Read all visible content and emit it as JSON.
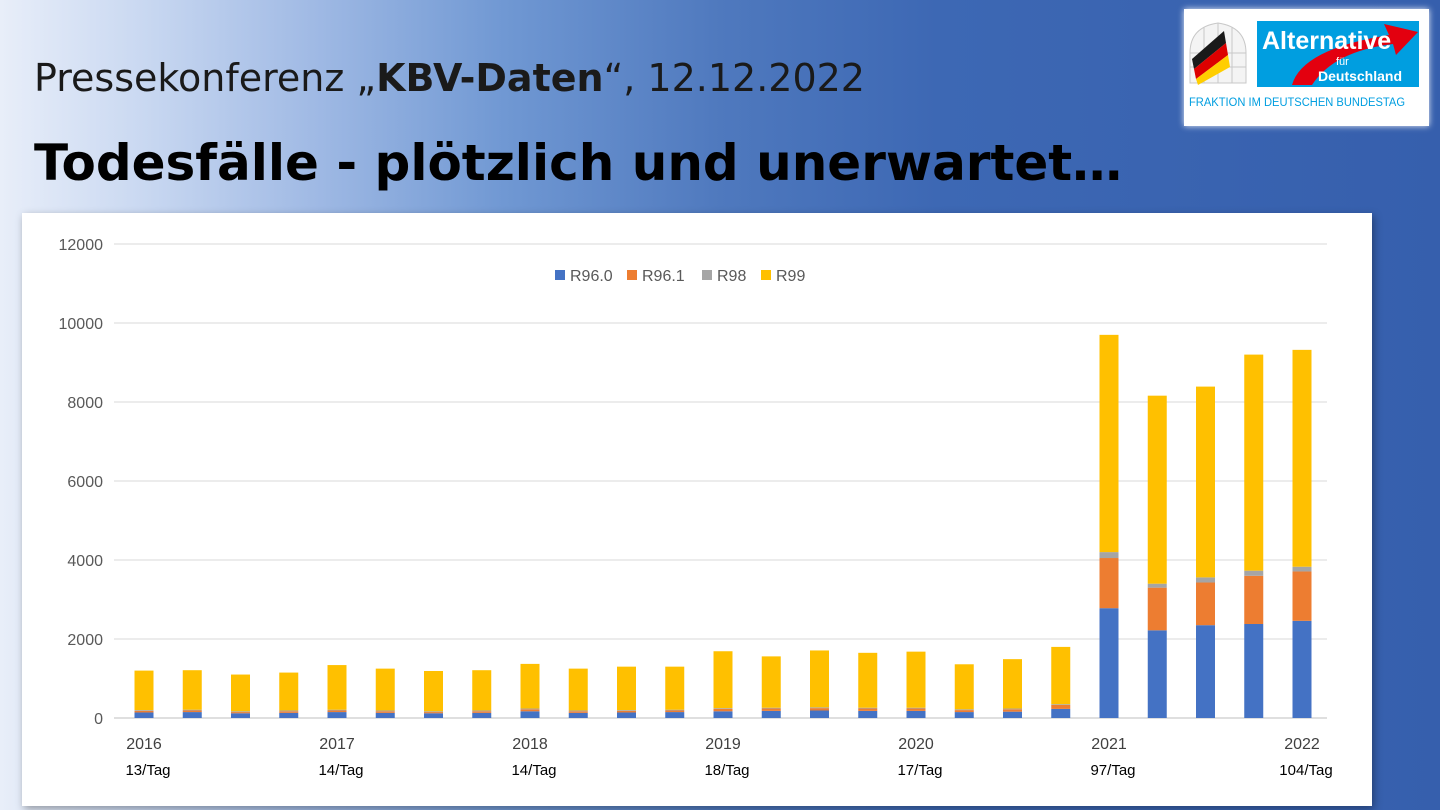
{
  "header": {
    "title_prefix": "Pressekonferenz „",
    "title_bold": "KBV-Daten",
    "title_suffix": "“, 12.12.2022",
    "headline": "Todesfälle - plötzlich und unerwartet…"
  },
  "logo": {
    "brand_word": "Alternative",
    "fuer": "für",
    "country": "Deutschland",
    "subtitle": "FRAKTION IM DEUTSCHEN BUNDESTAG",
    "brand_color": "#009ee0",
    "arrow_color": "#e3000f"
  },
  "chart_data": {
    "type": "bar",
    "stacked": true,
    "grid": true,
    "legend_position": "top-center",
    "ylim": [
      0,
      12000
    ],
    "y_ticks": [
      "0",
      "2000",
      "4000",
      "6000",
      "8000",
      "10000",
      "12000"
    ],
    "x_year_labels": [
      {
        "label": "2016",
        "index": 0
      },
      {
        "label": "2017",
        "index": 4
      },
      {
        "label": "2018",
        "index": 8
      },
      {
        "label": "2019",
        "index": 12
      },
      {
        "label": "2020",
        "index": 16
      },
      {
        "label": "2021",
        "index": 20
      },
      {
        "label": "2022",
        "index": 24
      }
    ],
    "rate_labels": [
      {
        "label": "13/Tag",
        "index": 0
      },
      {
        "label": "14/Tag",
        "index": 4
      },
      {
        "label": "14/Tag",
        "index": 8
      },
      {
        "label": "18/Tag",
        "index": 12
      },
      {
        "label": "17/Tag",
        "index": 16
      },
      {
        "label": "97/Tag",
        "index": 20
      },
      {
        "label": "104/Tag",
        "index": 24
      }
    ],
    "bar_count": 25,
    "series": [
      {
        "name": "R96.0",
        "color": "#4472c4",
        "values": [
          140,
          150,
          120,
          130,
          150,
          130,
          120,
          130,
          170,
          130,
          140,
          150,
          170,
          180,
          190,
          180,
          180,
          150,
          160,
          230,
          2780,
          2220,
          2350,
          2380,
          2460
        ]
      },
      {
        "name": "R96.1",
        "color": "#ed7d31",
        "values": [
          40,
          40,
          30,
          40,
          40,
          40,
          30,
          40,
          50,
          40,
          40,
          40,
          60,
          60,
          60,
          60,
          60,
          50,
          60,
          100,
          1270,
          1080,
          1080,
          1220,
          1250
        ]
      },
      {
        "name": "R98",
        "color": "#a5a5a5",
        "values": [
          20,
          20,
          20,
          20,
          20,
          20,
          20,
          20,
          20,
          20,
          20,
          20,
          20,
          20,
          20,
          20,
          20,
          20,
          20,
          20,
          150,
          100,
          130,
          130,
          120
        ]
      },
      {
        "name": "R99",
        "color": "#ffc000",
        "values": [
          1000,
          1000,
          930,
          960,
          1130,
          1060,
          1020,
          1020,
          1130,
          1060,
          1100,
          1090,
          1440,
          1300,
          1440,
          1390,
          1420,
          1140,
          1250,
          1450,
          5500,
          4760,
          4830,
          5470,
          5490
        ]
      }
    ]
  }
}
